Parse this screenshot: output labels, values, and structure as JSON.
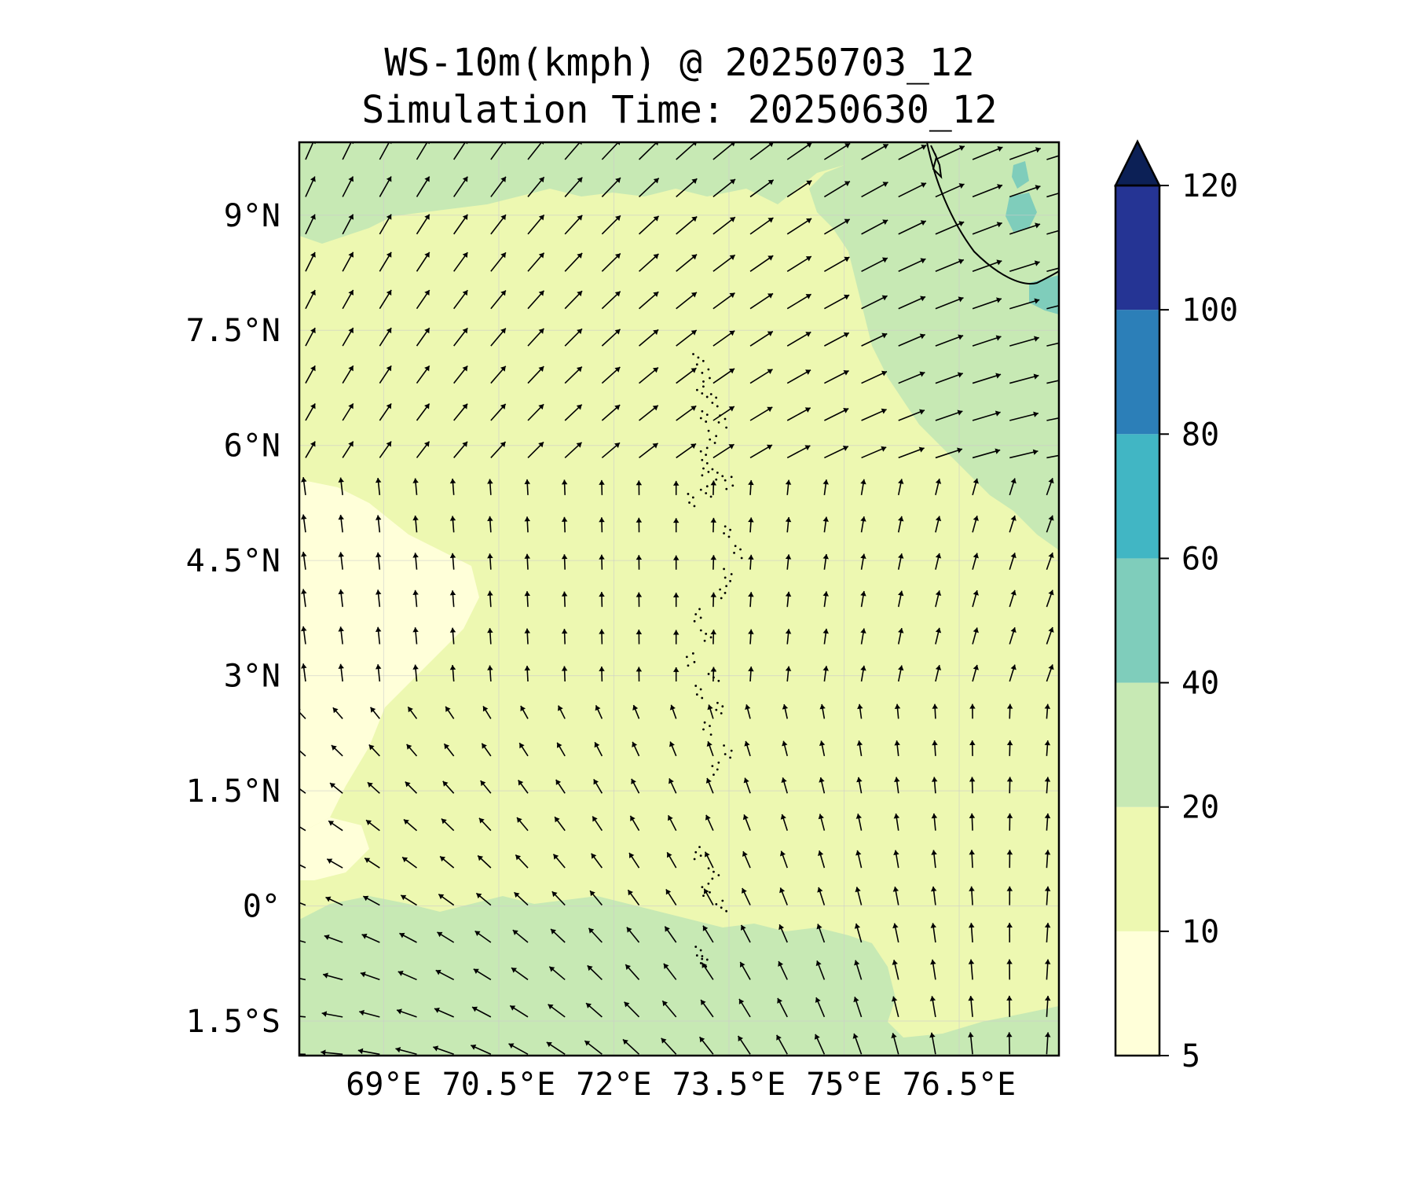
{
  "title": {
    "line1": "WS-10m(kmph) @ 20250703_12",
    "line2": "Simulation Time: 20250630_12"
  },
  "map": {
    "lon_range": [
      67.9,
      77.8
    ],
    "lat_range": [
      -1.95,
      9.95
    ],
    "lon_ticks": [
      {
        "value": 69.0,
        "label": "69°E"
      },
      {
        "value": 70.5,
        "label": "70.5°E"
      },
      {
        "value": 72.0,
        "label": "72°E"
      },
      {
        "value": 73.5,
        "label": "73.5°E"
      },
      {
        "value": 75.0,
        "label": "75°E"
      },
      {
        "value": 76.5,
        "label": "76.5°E"
      }
    ],
    "lat_ticks": [
      {
        "value": 9.0,
        "label": "9°N"
      },
      {
        "value": 7.5,
        "label": "7.5°N"
      },
      {
        "value": 6.0,
        "label": "6°N"
      },
      {
        "value": 4.5,
        "label": "4.5°N"
      },
      {
        "value": 3.0,
        "label": "3°N"
      },
      {
        "value": 1.5,
        "label": "1.5°N"
      },
      {
        "value": 0.0,
        "label": "0°"
      },
      {
        "value": -1.5,
        "label": "1.5°S"
      }
    ],
    "gridlines": true,
    "coastline_color": "#000000",
    "vector_color": "#000000"
  },
  "colorbar": {
    "levels": [
      {
        "label": "5",
        "color": "#ffffd9"
      },
      {
        "label": "10",
        "color": "#edf8b1"
      },
      {
        "label": "20",
        "color": "#c7e9b4"
      },
      {
        "label": "40",
        "color": "#7fcdbb"
      },
      {
        "label": "60",
        "color": "#41b6c4"
      },
      {
        "label": "80",
        "color": "#2c7fb8"
      },
      {
        "label": "100",
        "color": "#253494"
      },
      {
        "label": "120",
        "color": "#081d58"
      }
    ],
    "extend": "max",
    "extend_color": "#0c2056"
  }
}
